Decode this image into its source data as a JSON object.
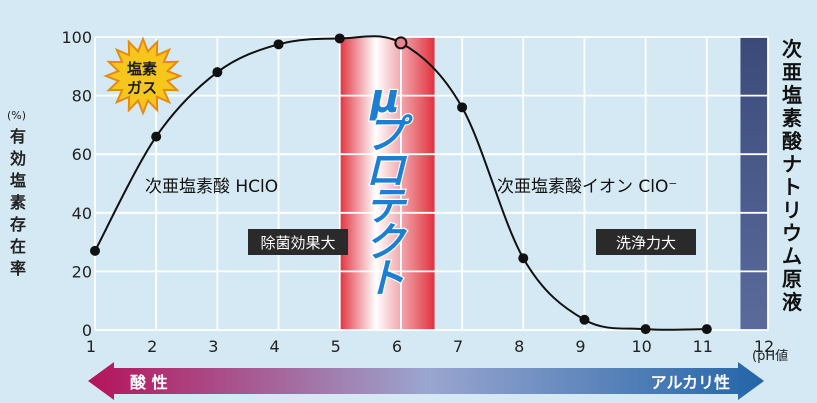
{
  "chart_data": {
    "type": "line",
    "ylabel_unit": "(%)",
    "ylabel": "有効塩素存在率",
    "xlabel": "(pH値",
    "x_ticks": [
      1,
      2,
      3,
      4,
      5,
      6,
      7,
      8,
      9,
      10,
      11,
      12
    ],
    "y_ticks": [
      0,
      20,
      40,
      60,
      80,
      100
    ],
    "xlim": [
      1,
      12
    ],
    "ylim": [
      0,
      100
    ],
    "grid": true,
    "x": [
      1,
      2,
      3,
      4,
      5,
      6,
      7,
      8,
      9,
      10,
      11
    ],
    "y": [
      27,
      66,
      88,
      97.5,
      99.5,
      98,
      76,
      24.5,
      3.5,
      0.3,
      0.3
    ],
    "highlight_points": [
      6
    ],
    "shaded_bands": [
      {
        "x_from": 5,
        "x_to": 6.55,
        "label": "μプロテクト",
        "color": "#e43b47"
      },
      {
        "x_from": 11.55,
        "x_to": 12,
        "label": "次亜塩素酸ナトリウム原液",
        "color": "#4d5e8e"
      }
    ],
    "annotations": {
      "hocl": "次亜塩素酸 HClO",
      "ocl": "次亜塩素酸イオン ClO⁻",
      "sterilization": "除菌効果大",
      "cleaning": "洗浄力大",
      "chlorine_gas_line1": "塩素",
      "chlorine_gas_line2": "ガス"
    },
    "arrow": {
      "left_label": "酸 性",
      "right_label": "アルカリ性"
    },
    "colors": {
      "curve": "#111111",
      "grid": "#ffffff",
      "marker_fill": "#e8848f"
    }
  }
}
